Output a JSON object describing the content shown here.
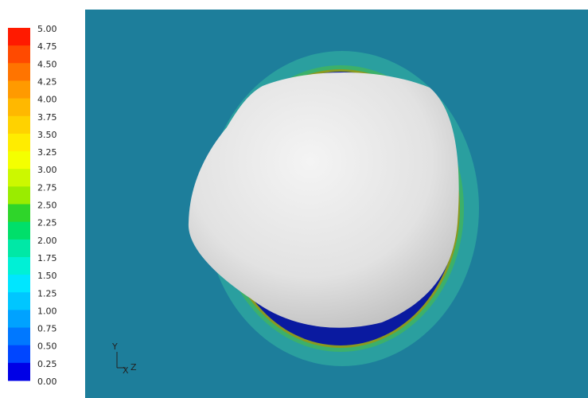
{
  "legend": {
    "labels": [
      "5.00",
      "4.75",
      "4.50",
      "4.25",
      "4.00",
      "3.75",
      "3.50",
      "3.25",
      "3.00",
      "2.75",
      "2.50",
      "2.25",
      "2.00",
      "1.75",
      "1.50",
      "1.25",
      "1.00",
      "0.75",
      "0.50",
      "0.25",
      "0.00"
    ],
    "colors": [
      "#ff1a00",
      "#ff4a00",
      "#ff7400",
      "#ff9a00",
      "#ffb800",
      "#ffd200",
      "#ffec00",
      "#f4ff00",
      "#ccf800",
      "#9aec00",
      "#2fd52a",
      "#00df6a",
      "#00e8a6",
      "#00f0d6",
      "#00e6ff",
      "#00c6ff",
      "#00a2ff",
      "#0078ff",
      "#0046ff",
      "#0000e6"
    ]
  },
  "axes": {
    "y": "Y",
    "x": "X",
    "z": "Z"
  }
}
